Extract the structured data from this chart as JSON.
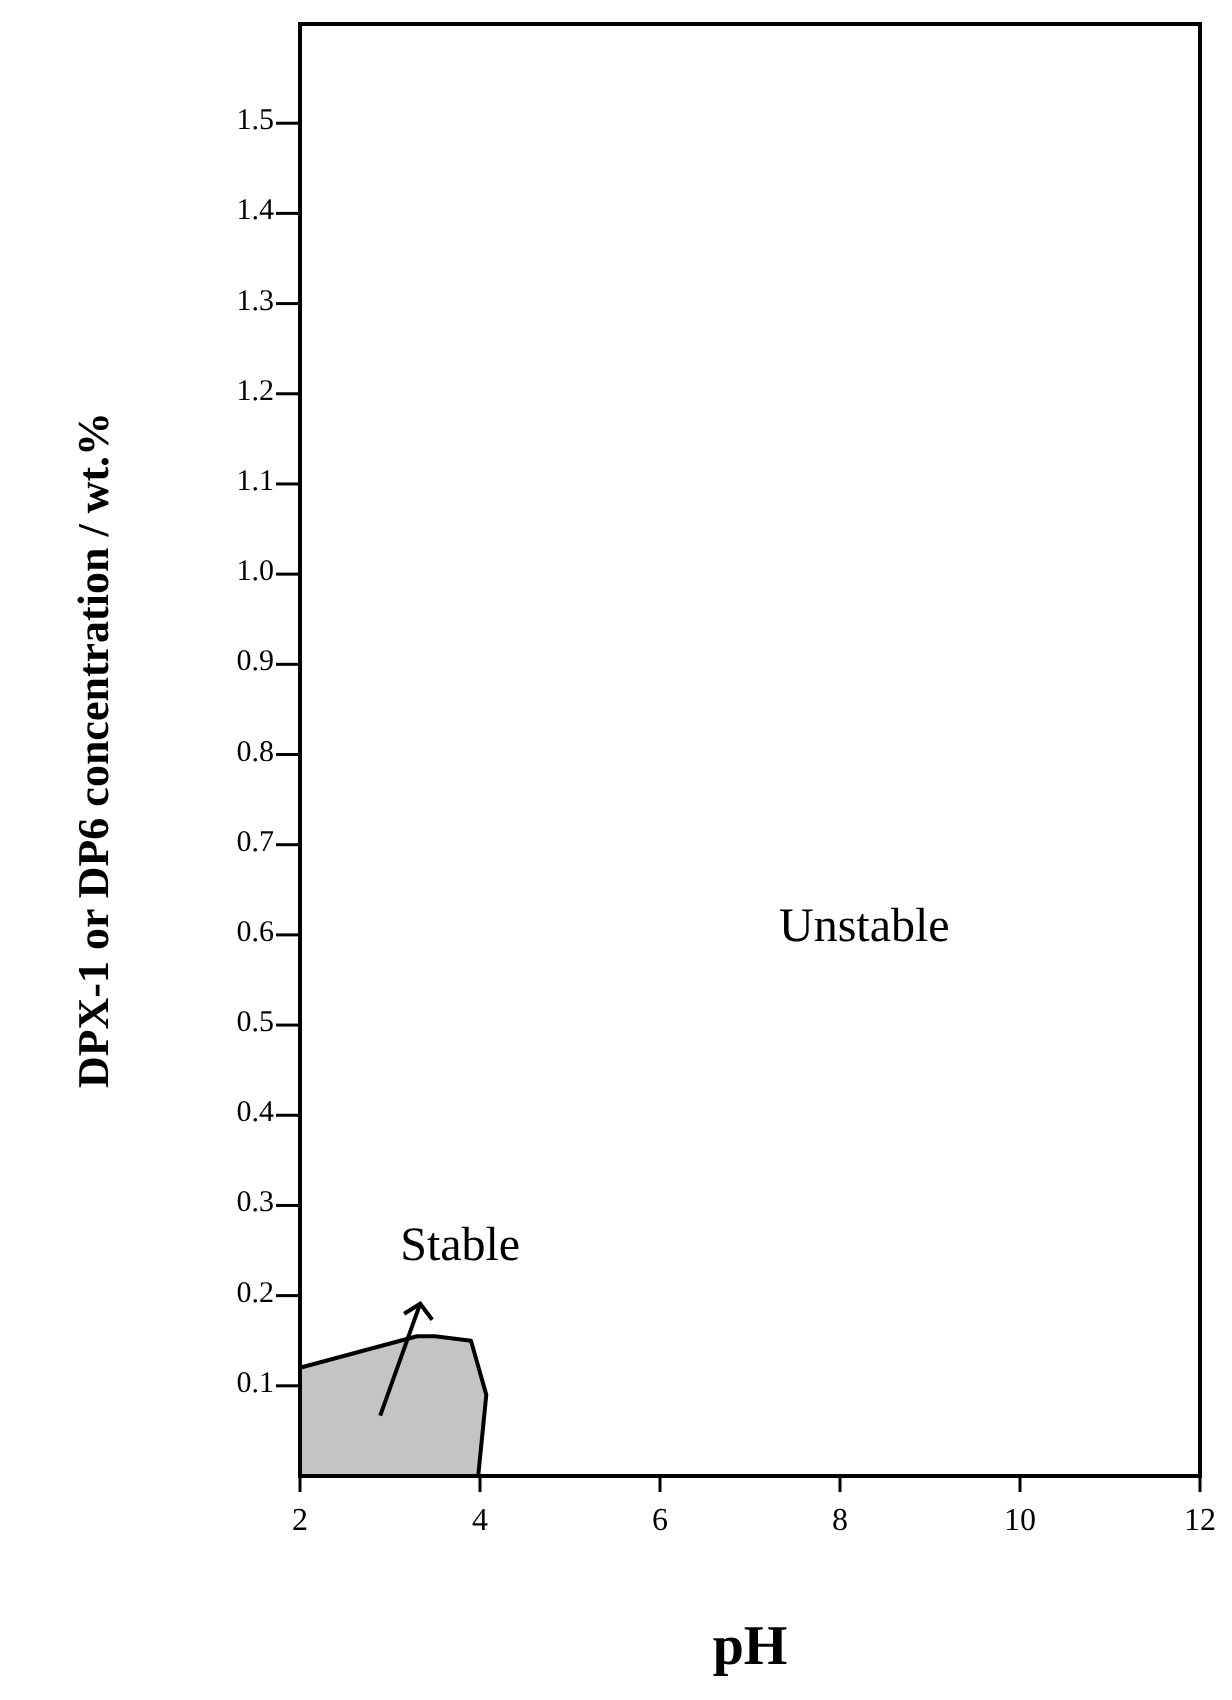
{
  "chart_data": {
    "type": "area",
    "xlabel": "pH",
    "ylabel": "DPX-1 or DP6 concentration / wt.%",
    "xlim": [
      2,
      12
    ],
    "ylim": [
      0,
      1.61
    ],
    "xticks": [
      2,
      4,
      6,
      8,
      10,
      12
    ],
    "yticks": [
      0.1,
      0.2,
      0.3,
      0.4,
      0.5,
      0.6,
      0.7,
      0.8,
      0.9,
      {
        "value": 1,
        "label": "1.0"
      },
      1.1,
      1.2,
      1.3,
      1.4,
      1.5
    ],
    "series": [
      {
        "color": "#c4c4c4",
        "x": [
          2,
          3.3,
          3.5,
          3.9,
          4.07,
          3.98
        ],
        "values": [
          0.12,
          0.155,
          0.155,
          0.15,
          0.09,
          0
        ]
      }
    ],
    "annotations": [
      "Unstable",
      "Stable"
    ],
    "grid": false
  }
}
